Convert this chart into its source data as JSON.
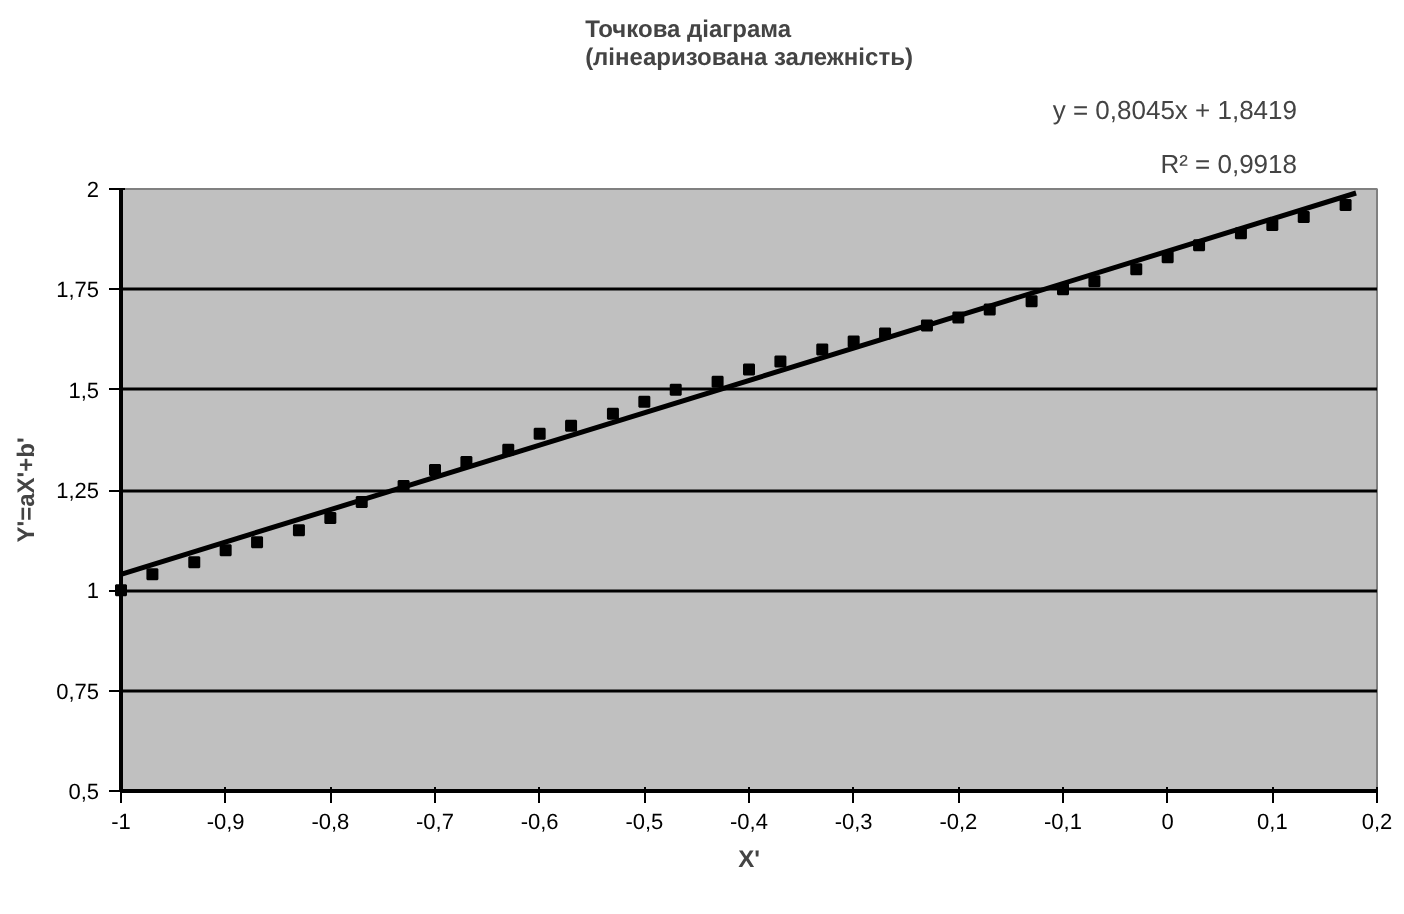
{
  "chart_data": {
    "type": "scatter",
    "title": "Точкова діаграма\n(лінеаризована залежність)",
    "xlabel": "X'",
    "ylabel": "Y'=aX'+b'",
    "annotations": [
      "y = 0,8045x + 1,8419",
      "R² = 0,9918"
    ],
    "xlim": [
      -1,
      0.2
    ],
    "ylim": [
      0.5,
      2
    ],
    "xticks": [
      {
        "value": -1,
        "label": "-1"
      },
      {
        "value": -0.9,
        "label": "-0,9"
      },
      {
        "value": -0.8,
        "label": "-0,8"
      },
      {
        "value": -0.7,
        "label": "-0,7"
      },
      {
        "value": -0.6,
        "label": "-0,6"
      },
      {
        "value": -0.5,
        "label": "-0,5"
      },
      {
        "value": -0.4,
        "label": "-0,4"
      },
      {
        "value": -0.3,
        "label": "-0,3"
      },
      {
        "value": -0.2,
        "label": "-0,2"
      },
      {
        "value": -0.1,
        "label": "-0,1"
      },
      {
        "value": 0,
        "label": "0"
      },
      {
        "value": 0.1,
        "label": "0,1"
      },
      {
        "value": 0.2,
        "label": "0,2"
      }
    ],
    "yticks": [
      {
        "value": 0.5,
        "label": "0,5"
      },
      {
        "value": 0.75,
        "label": "0,75"
      },
      {
        "value": 1,
        "label": "1"
      },
      {
        "value": 1.25,
        "label": "1,25"
      },
      {
        "value": 1.5,
        "label": "1,5"
      },
      {
        "value": 1.75,
        "label": "1,75"
      },
      {
        "value": 2,
        "label": "2"
      }
    ],
    "grid": "y",
    "series": [
      {
        "marker": "square",
        "color": "#000000",
        "x": [
          -1,
          -0.97,
          -0.93,
          -0.9,
          -0.87,
          -0.83,
          -0.8,
          -0.77,
          -0.73,
          -0.7,
          -0.67,
          -0.63,
          -0.6,
          -0.57,
          -0.53,
          -0.5,
          -0.47,
          -0.43,
          -0.4,
          -0.37,
          -0.33,
          -0.3,
          -0.27,
          -0.23,
          -0.2,
          -0.17,
          -0.13,
          -0.1,
          -0.07,
          -0.03,
          0,
          0.03,
          0.07,
          0.1,
          0.13,
          0.17
        ],
        "values": [
          1.0,
          1.04,
          1.07,
          1.1,
          1.12,
          1.15,
          1.18,
          1.22,
          1.26,
          1.3,
          1.32,
          1.35,
          1.39,
          1.41,
          1.44,
          1.47,
          1.5,
          1.52,
          1.55,
          1.57,
          1.6,
          1.62,
          1.64,
          1.66,
          1.68,
          1.7,
          1.72,
          1.75,
          1.77,
          1.8,
          1.83,
          1.86,
          1.89,
          1.91,
          1.93,
          1.96
        ]
      },
      {
        "type": "line",
        "marker": "none",
        "color": "#000000",
        "x": [
          -1,
          0.18
        ],
        "values": [
          1.04,
          1.99
        ]
      }
    ]
  }
}
